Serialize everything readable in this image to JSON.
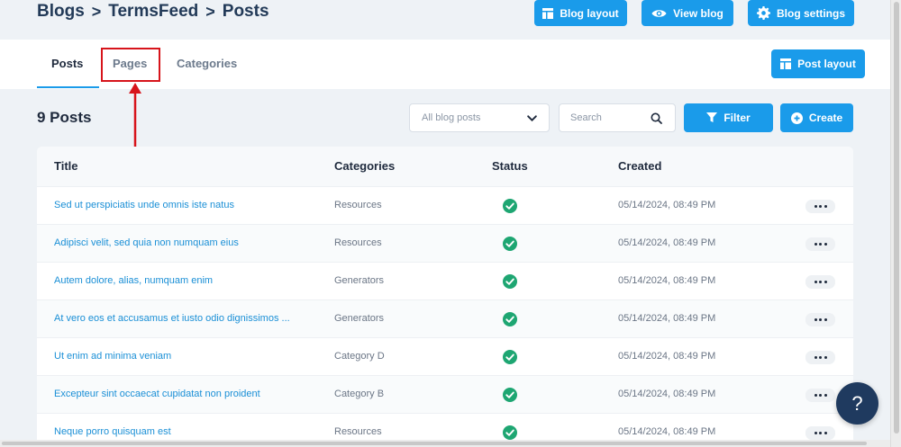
{
  "breadcrumb": {
    "items": [
      "Blogs",
      "TermsFeed",
      "Posts"
    ],
    "separator": ">"
  },
  "header_actions": {
    "blog_layout": "Blog layout",
    "view_blog": "View blog",
    "blog_settings": "Blog settings"
  },
  "tabs": [
    {
      "label": "Posts",
      "active": true
    },
    {
      "label": "Pages",
      "active": false,
      "highlighted": true
    },
    {
      "label": "Categories",
      "active": false
    }
  ],
  "post_layout_label": "Post layout",
  "section_title": "9 Posts",
  "filter_select": {
    "value": "All blog posts"
  },
  "search": {
    "placeholder": "Search"
  },
  "filter_label": "Filter",
  "create_label": "Create",
  "table": {
    "columns": [
      "Title",
      "Categories",
      "Status",
      "Created"
    ],
    "rows": [
      {
        "title": "Sed ut perspiciatis unde omnis iste natus",
        "category": "Resources",
        "status": "published",
        "created": "05/14/2024, 08:49 PM"
      },
      {
        "title": "Adipisci velit, sed quia non numquam eius",
        "category": "Resources",
        "status": "published",
        "created": "05/14/2024, 08:49 PM"
      },
      {
        "title": "Autem dolore, alias, numquam enim",
        "category": "Generators",
        "status": "published",
        "created": "05/14/2024, 08:49 PM"
      },
      {
        "title": "At vero eos et accusamus et iusto odio dignissimos ...",
        "category": "Generators",
        "status": "published",
        "created": "05/14/2024, 08:49 PM"
      },
      {
        "title": "Ut enim ad minima veniam",
        "category": "Category D",
        "status": "published",
        "created": "05/14/2024, 08:49 PM"
      },
      {
        "title": "Excepteur sint occaecat cupidatat non proident",
        "category": "Category B",
        "status": "published",
        "created": "05/14/2024, 08:49 PM"
      },
      {
        "title": "Neque porro quisquam est",
        "category": "Resources",
        "status": "published",
        "created": "05/14/2024, 08:49 PM"
      }
    ]
  },
  "help_label": "?",
  "colors": {
    "accent": "#1a9bea",
    "status_ok": "#1ea672",
    "annotation": "#d7141b",
    "help_button": "#1f3a5f"
  },
  "icons": {
    "blog_layout": "layout-icon",
    "view_blog": "eye-icon",
    "blog_settings": "gear-icon",
    "post_layout": "layout-icon",
    "select": "chevron-down-icon",
    "search": "search-icon",
    "filter": "filter-icon",
    "create": "plus-circle-icon",
    "status": "check-circle-icon",
    "row_actions": "more-dots-icon"
  }
}
